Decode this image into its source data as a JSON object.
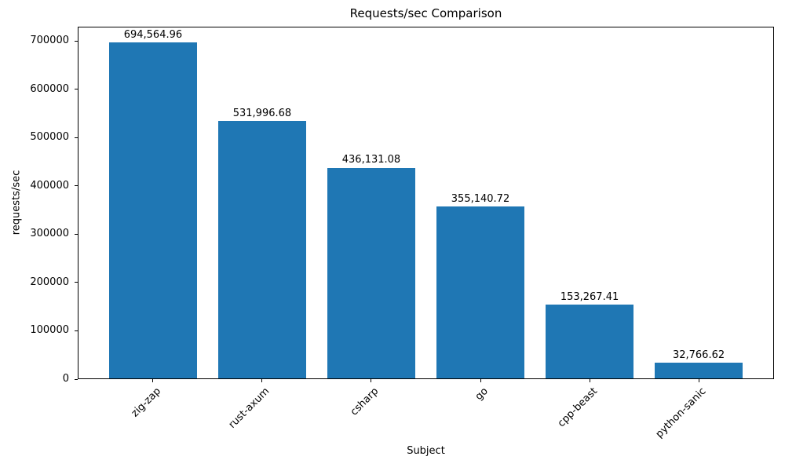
{
  "chart_data": {
    "type": "bar",
    "title": "Requests/sec Comparison",
    "xlabel": "Subject",
    "ylabel": "requests/sec",
    "categories": [
      "zig-zap",
      "rust-axum",
      "csharp",
      "go",
      "cpp-beast",
      "python-sanic"
    ],
    "values": [
      694564.96,
      531996.68,
      436131.08,
      355140.72,
      153267.41,
      32766.62
    ],
    "value_labels": [
      "694,564.96",
      "531,996.68",
      "436,131.08",
      "355,140.72",
      "153,267.41",
      "32,766.62"
    ],
    "y_ticks": [
      0,
      100000,
      200000,
      300000,
      400000,
      500000,
      600000,
      700000
    ],
    "y_tick_labels": [
      "0",
      "100000",
      "200000",
      "300000",
      "400000",
      "500000",
      "600000",
      "700000"
    ],
    "ylim": [
      0,
      729293
    ],
    "bar_color": "#1f77b4",
    "grid": false,
    "legend": "none"
  }
}
